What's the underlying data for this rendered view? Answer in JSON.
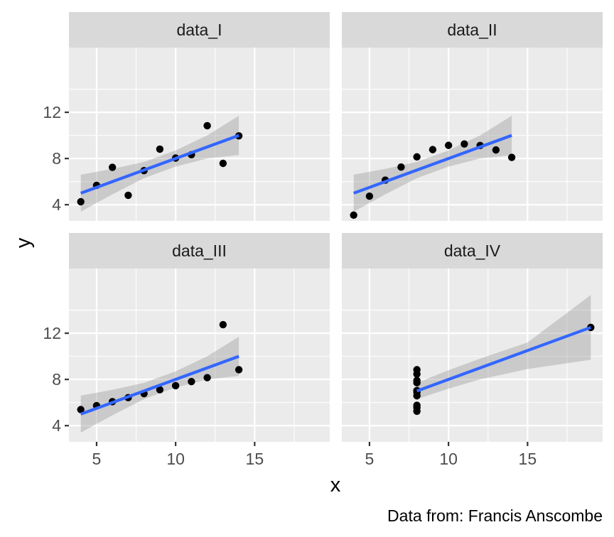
{
  "chart_data": {
    "type": "scatter",
    "facets": [
      {
        "label": "data_I",
        "x": [
          10,
          8,
          13,
          9,
          11,
          14,
          6,
          4,
          12,
          7,
          5
        ],
        "y": [
          8.04,
          6.95,
          7.58,
          8.81,
          8.33,
          9.96,
          7.24,
          4.26,
          10.84,
          4.82,
          5.68
        ],
        "fit": {
          "x": [
            4,
            14
          ],
          "y": [
            5.0,
            10.0
          ]
        },
        "band": {
          "x": [
            4,
            6,
            8,
            9,
            10,
            12,
            14
          ],
          "lower": [
            3.4,
            4.9,
            6.3,
            6.8,
            7.3,
            8.0,
            8.3
          ],
          "upper": [
            6.6,
            7.1,
            7.7,
            8.2,
            8.7,
            10.0,
            11.7
          ]
        }
      },
      {
        "label": "data_II",
        "x": [
          10,
          8,
          13,
          9,
          11,
          14,
          6,
          4,
          12,
          7,
          5
        ],
        "y": [
          9.14,
          8.14,
          8.74,
          8.77,
          9.26,
          8.1,
          6.13,
          3.1,
          9.13,
          7.26,
          4.74
        ],
        "fit": {
          "x": [
            4,
            14
          ],
          "y": [
            5.0,
            10.0
          ]
        },
        "band": {
          "x": [
            4,
            6,
            8,
            9,
            10,
            12,
            14
          ],
          "lower": [
            3.4,
            4.9,
            6.3,
            6.8,
            7.3,
            8.0,
            8.3
          ],
          "upper": [
            6.6,
            7.1,
            7.7,
            8.2,
            8.7,
            10.0,
            11.7
          ]
        }
      },
      {
        "label": "data_III",
        "x": [
          10,
          8,
          13,
          9,
          11,
          14,
          6,
          4,
          12,
          7,
          5
        ],
        "y": [
          7.46,
          6.77,
          12.74,
          7.11,
          7.81,
          8.84,
          6.08,
          5.39,
          8.15,
          6.42,
          5.73
        ],
        "fit": {
          "x": [
            4,
            14
          ],
          "y": [
            5.0,
            10.0
          ]
        },
        "band": {
          "x": [
            4,
            6,
            8,
            9,
            10,
            12,
            14
          ],
          "lower": [
            3.4,
            4.9,
            6.3,
            6.8,
            7.3,
            8.0,
            8.3
          ],
          "upper": [
            6.6,
            7.1,
            7.7,
            8.2,
            8.7,
            10.0,
            11.7
          ]
        }
      },
      {
        "label": "data_IV",
        "x": [
          8,
          8,
          8,
          8,
          8,
          8,
          8,
          19,
          8,
          8,
          8
        ],
        "y": [
          6.58,
          5.76,
          7.71,
          8.84,
          8.47,
          7.04,
          5.25,
          12.5,
          5.56,
          7.91,
          6.89
        ],
        "fit": {
          "x": [
            8,
            19
          ],
          "y": [
            7.0,
            12.5
          ]
        },
        "band": {
          "x": [
            8,
            10,
            12,
            15,
            19
          ],
          "lower": [
            6.3,
            7.2,
            8.0,
            8.9,
            9.7
          ],
          "upper": [
            7.7,
            8.8,
            9.8,
            11.2,
            15.3
          ]
        }
      }
    ],
    "xlabel": "x",
    "ylabel": "y",
    "xlim": [
      3.25,
      19.75
    ],
    "ylim": [
      2.6,
      17.6
    ],
    "xticks": [
      5,
      10,
      15
    ],
    "yticks": [
      4,
      8,
      12
    ],
    "caption": "Data from: Francis Anscombe",
    "grid": true,
    "point_color": "#000000",
    "fit_color": "#3366FF",
    "band_color": "#999999",
    "panel_color": "#EBEBEB",
    "strip_color": "#D9D9D9"
  }
}
